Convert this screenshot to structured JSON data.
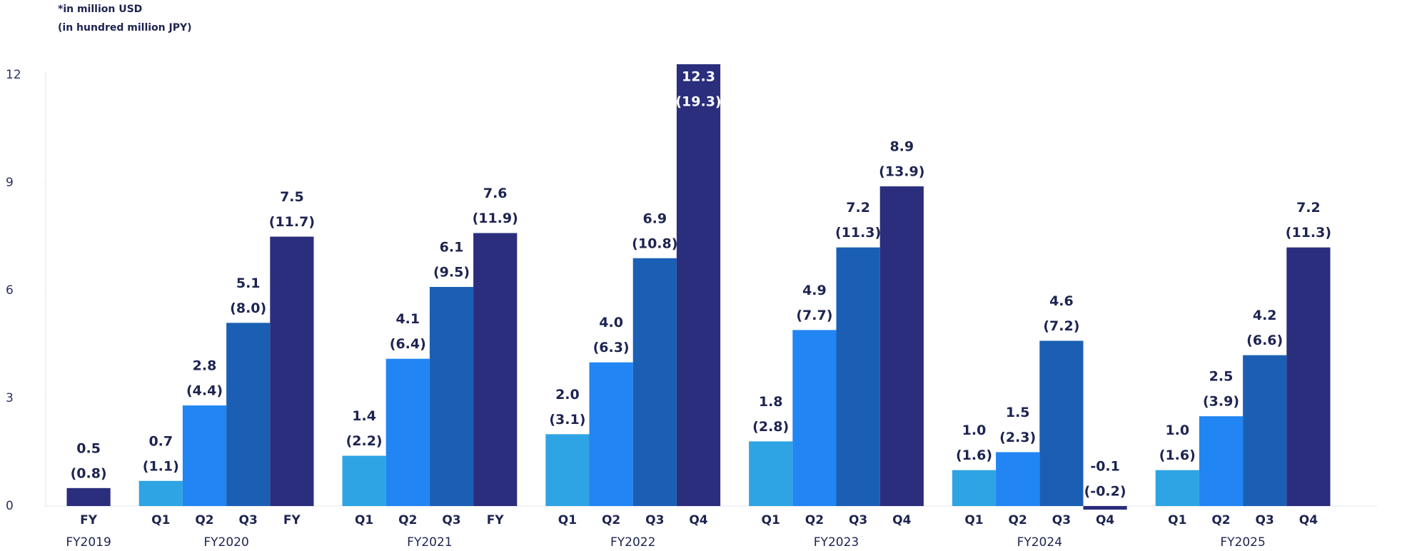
{
  "chart_data": {
    "type": "bar",
    "notes": [
      "*in million USD",
      "(in hundred million JPY)"
    ],
    "ylim": [
      0,
      12.3
    ],
    "yticks": [
      0,
      3,
      6,
      9,
      12
    ],
    "colors": {
      "Q1": "#2ea4e4",
      "Q2": "#2185f3",
      "Q3": "#1b5fb5",
      "Q4": "#2a2e7c",
      "FY": "#2a2e7c"
    },
    "groups": [
      {
        "name": "FY2019",
        "categories": [
          "FY"
        ],
        "values": [
          0.5
        ],
        "value_labels": [
          "0.5"
        ],
        "jpy_labels": [
          "(0.8)"
        ]
      },
      {
        "name": "FY2020",
        "categories": [
          "Q1",
          "Q2",
          "Q3",
          "FY"
        ],
        "values": [
          0.7,
          2.8,
          5.1,
          7.5
        ],
        "value_labels": [
          "0.7",
          "2.8",
          "5.1",
          "7.5"
        ],
        "jpy_labels": [
          "(1.1)",
          "(4.4)",
          "(8.0)",
          "(11.7)"
        ]
      },
      {
        "name": "FY2021",
        "categories": [
          "Q1",
          "Q2",
          "Q3",
          "FY"
        ],
        "values": [
          1.4,
          4.1,
          6.1,
          7.6
        ],
        "value_labels": [
          "1.4",
          "4.1",
          "6.1",
          "7.6"
        ],
        "jpy_labels": [
          "(2.2)",
          "(6.4)",
          "(9.5)",
          "(11.9)"
        ]
      },
      {
        "name": "FY2022",
        "categories": [
          "Q1",
          "Q2",
          "Q3",
          "Q4"
        ],
        "values": [
          2.0,
          4.0,
          6.9,
          12.3
        ],
        "value_labels": [
          "2.0",
          "4.0",
          "6.9",
          "12.3"
        ],
        "jpy_labels": [
          "(3.1)",
          "(6.3)",
          "(10.8)",
          "(19.3)"
        ]
      },
      {
        "name": "FY2023",
        "categories": [
          "Q1",
          "Q2",
          "Q3",
          "Q4"
        ],
        "values": [
          1.8,
          4.9,
          7.2,
          8.9
        ],
        "value_labels": [
          "1.8",
          "4.9",
          "7.2",
          "8.9"
        ],
        "jpy_labels": [
          "(2.8)",
          "(7.7)",
          "(11.3)",
          "(13.9)"
        ]
      },
      {
        "name": "FY2024",
        "categories": [
          "Q1",
          "Q2",
          "Q3",
          "Q4"
        ],
        "values": [
          1.0,
          1.5,
          4.6,
          -0.1
        ],
        "value_labels": [
          "1.0",
          "1.5",
          "4.6",
          "-0.1"
        ],
        "jpy_labels": [
          "(1.6)",
          "(2.3)",
          "(7.2)",
          "(-0.2)"
        ]
      },
      {
        "name": "FY2025",
        "categories": [
          "Q1",
          "Q2",
          "Q3",
          "Q4"
        ],
        "values": [
          1.0,
          2.5,
          4.2,
          7.2
        ],
        "value_labels": [
          "1.0",
          "2.5",
          "4.2",
          "7.2"
        ],
        "jpy_labels": [
          "(1.6)",
          "(3.9)",
          "(6.6)",
          "(11.3)"
        ]
      }
    ]
  }
}
